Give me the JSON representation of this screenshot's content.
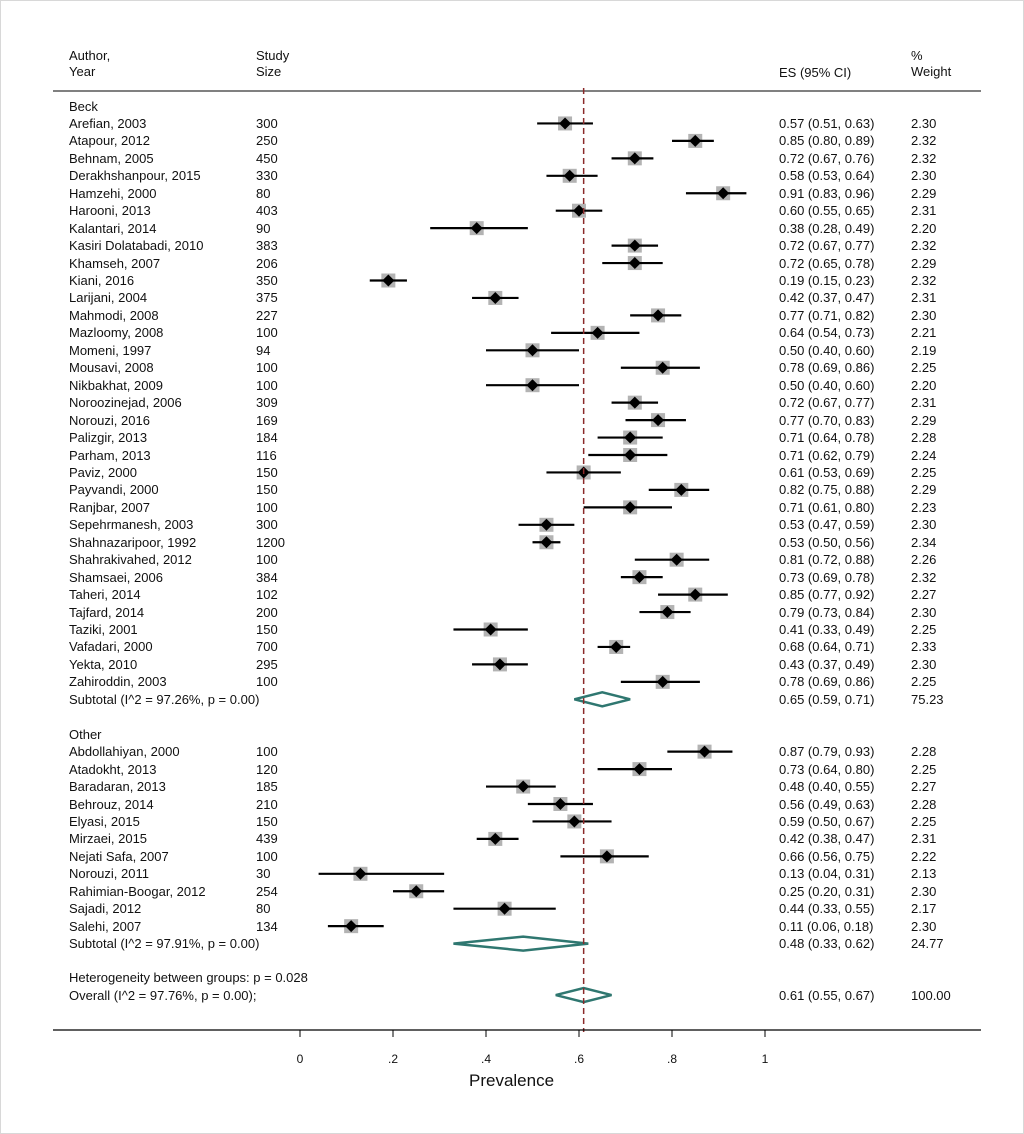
{
  "chart_data": {
    "type": "forest",
    "xlabel": "Prevalence",
    "xlim": [
      0,
      1
    ],
    "xticks": [
      "0",
      ".2",
      ".4",
      ".6",
      ".8",
      "1"
    ],
    "reference_line": 0.61,
    "columns": {
      "author": "Author,\nYear",
      "size": "Study\nSize",
      "es": "ES (95% CI)",
      "weight": "%\nWeight"
    },
    "groups": [
      {
        "name": "Beck",
        "studies": [
          {
            "author": "Arefian, 2003",
            "size": "300",
            "es": 0.57,
            "lo": 0.51,
            "hi": 0.63,
            "ci_text": "0.57 (0.51, 0.63)",
            "weight": "2.30"
          },
          {
            "author": "Atapour, 2012",
            "size": "250",
            "es": 0.85,
            "lo": 0.8,
            "hi": 0.89,
            "ci_text": "0.85 (0.80, 0.89)",
            "weight": "2.32"
          },
          {
            "author": "Behnam, 2005",
            "size": "450",
            "es": 0.72,
            "lo": 0.67,
            "hi": 0.76,
            "ci_text": "0.72 (0.67, 0.76)",
            "weight": "2.32"
          },
          {
            "author": "Derakhshanpour, 2015",
            "size": "330",
            "es": 0.58,
            "lo": 0.53,
            "hi": 0.64,
            "ci_text": "0.58 (0.53, 0.64)",
            "weight": "2.30"
          },
          {
            "author": "Hamzehi, 2000",
            "size": "80",
            "es": 0.91,
            "lo": 0.83,
            "hi": 0.96,
            "ci_text": "0.91 (0.83, 0.96)",
            "weight": "2.29"
          },
          {
            "author": "Harooni, 2013",
            "size": "403",
            "es": 0.6,
            "lo": 0.55,
            "hi": 0.65,
            "ci_text": "0.60 (0.55, 0.65)",
            "weight": "2.31"
          },
          {
            "author": "Kalantari, 2014",
            "size": "90",
            "es": 0.38,
            "lo": 0.28,
            "hi": 0.49,
            "ci_text": "0.38 (0.28, 0.49)",
            "weight": "2.20"
          },
          {
            "author": "Kasiri Dolatabadi, 2010",
            "size": "383",
            "es": 0.72,
            "lo": 0.67,
            "hi": 0.77,
            "ci_text": "0.72 (0.67, 0.77)",
            "weight": "2.32"
          },
          {
            "author": "Khamseh, 2007",
            "size": "206",
            "es": 0.72,
            "lo": 0.65,
            "hi": 0.78,
            "ci_text": "0.72 (0.65, 0.78)",
            "weight": "2.29"
          },
          {
            "author": "Kiani, 2016",
            "size": "350",
            "es": 0.19,
            "lo": 0.15,
            "hi": 0.23,
            "ci_text": "0.19 (0.15, 0.23)",
            "weight": "2.32"
          },
          {
            "author": "Larijani, 2004",
            "size": "375",
            "es": 0.42,
            "lo": 0.37,
            "hi": 0.47,
            "ci_text": "0.42 (0.37, 0.47)",
            "weight": "2.31"
          },
          {
            "author": "Mahmodi, 2008",
            "size": "227",
            "es": 0.77,
            "lo": 0.71,
            "hi": 0.82,
            "ci_text": "0.77 (0.71, 0.82)",
            "weight": "2.30"
          },
          {
            "author": "Mazloomy, 2008",
            "size": "100",
            "es": 0.64,
            "lo": 0.54,
            "hi": 0.73,
            "ci_text": "0.64 (0.54, 0.73)",
            "weight": "2.21"
          },
          {
            "author": "Momeni, 1997",
            "size": "94",
            "es": 0.5,
            "lo": 0.4,
            "hi": 0.6,
            "ci_text": "0.50 (0.40, 0.60)",
            "weight": "2.19"
          },
          {
            "author": "Mousavi, 2008",
            "size": "100",
            "es": 0.78,
            "lo": 0.69,
            "hi": 0.86,
            "ci_text": "0.78 (0.69, 0.86)",
            "weight": "2.25"
          },
          {
            "author": "Nikbakhat, 2009",
            "size": "100",
            "es": 0.5,
            "lo": 0.4,
            "hi": 0.6,
            "ci_text": "0.50 (0.40, 0.60)",
            "weight": "2.20"
          },
          {
            "author": "Noroozinejad, 2006",
            "size": "309",
            "es": 0.72,
            "lo": 0.67,
            "hi": 0.77,
            "ci_text": "0.72 (0.67, 0.77)",
            "weight": "2.31"
          },
          {
            "author": "Norouzi, 2016",
            "size": "169",
            "es": 0.77,
            "lo": 0.7,
            "hi": 0.83,
            "ci_text": "0.77 (0.70, 0.83)",
            "weight": "2.29"
          },
          {
            "author": "Palizgir, 2013",
            "size": "184",
            "es": 0.71,
            "lo": 0.64,
            "hi": 0.78,
            "ci_text": "0.71 (0.64, 0.78)",
            "weight": "2.28"
          },
          {
            "author": "Parham, 2013",
            "size": "116",
            "es": 0.71,
            "lo": 0.62,
            "hi": 0.79,
            "ci_text": "0.71 (0.62, 0.79)",
            "weight": "2.24"
          },
          {
            "author": "Paviz, 2000",
            "size": "150",
            "es": 0.61,
            "lo": 0.53,
            "hi": 0.69,
            "ci_text": "0.61 (0.53, 0.69)",
            "weight": "2.25"
          },
          {
            "author": "Payvandi, 2000",
            "size": "150",
            "es": 0.82,
            "lo": 0.75,
            "hi": 0.88,
            "ci_text": "0.82 (0.75, 0.88)",
            "weight": "2.29"
          },
          {
            "author": "Ranjbar, 2007",
            "size": "100",
            "es": 0.71,
            "lo": 0.61,
            "hi": 0.8,
            "ci_text": "0.71 (0.61, 0.80)",
            "weight": "2.23"
          },
          {
            "author": "Sepehrmanesh, 2003",
            "size": "300",
            "es": 0.53,
            "lo": 0.47,
            "hi": 0.59,
            "ci_text": "0.53 (0.47, 0.59)",
            "weight": "2.30"
          },
          {
            "author": "Shahnazaripoor, 1992",
            "size": "1200",
            "es": 0.53,
            "lo": 0.5,
            "hi": 0.56,
            "ci_text": "0.53 (0.50, 0.56)",
            "weight": "2.34"
          },
          {
            "author": "Shahrakivahed, 2012",
            "size": "100",
            "es": 0.81,
            "lo": 0.72,
            "hi": 0.88,
            "ci_text": "0.81 (0.72, 0.88)",
            "weight": "2.26"
          },
          {
            "author": "Shamsaei, 2006",
            "size": "384",
            "es": 0.73,
            "lo": 0.69,
            "hi": 0.78,
            "ci_text": "0.73 (0.69, 0.78)",
            "weight": "2.32"
          },
          {
            "author": "Taheri, 2014",
            "size": "102",
            "es": 0.85,
            "lo": 0.77,
            "hi": 0.92,
            "ci_text": "0.85 (0.77, 0.92)",
            "weight": "2.27"
          },
          {
            "author": "Tajfard, 2014",
            "size": "200",
            "es": 0.79,
            "lo": 0.73,
            "hi": 0.84,
            "ci_text": "0.79 (0.73, 0.84)",
            "weight": "2.30"
          },
          {
            "author": "Taziki, 2001",
            "size": "150",
            "es": 0.41,
            "lo": 0.33,
            "hi": 0.49,
            "ci_text": "0.41 (0.33, 0.49)",
            "weight": "2.25"
          },
          {
            "author": "Vafadari, 2000",
            "size": "700",
            "es": 0.68,
            "lo": 0.64,
            "hi": 0.71,
            "ci_text": "0.68 (0.64, 0.71)",
            "weight": "2.33"
          },
          {
            "author": "Yekta, 2010",
            "size": "295",
            "es": 0.43,
            "lo": 0.37,
            "hi": 0.49,
            "ci_text": "0.43 (0.37, 0.49)",
            "weight": "2.30"
          },
          {
            "author": "Zahiroddin, 2003",
            "size": "100",
            "es": 0.78,
            "lo": 0.69,
            "hi": 0.86,
            "ci_text": "0.78 (0.69, 0.86)",
            "weight": "2.25"
          }
        ],
        "subtotal": {
          "label": "Subtotal  (I^2 = 97.26%, p = 0.00)",
          "es": 0.65,
          "lo": 0.59,
          "hi": 0.71,
          "ci_text": "0.65 (0.59, 0.71)",
          "weight": "75.23"
        }
      },
      {
        "name": "Other",
        "studies": [
          {
            "author": "Abdollahiyan, 2000",
            "size": "100",
            "es": 0.87,
            "lo": 0.79,
            "hi": 0.93,
            "ci_text": "0.87 (0.79, 0.93)",
            "weight": "2.28"
          },
          {
            "author": "Atadokht, 2013",
            "size": "120",
            "es": 0.73,
            "lo": 0.64,
            "hi": 0.8,
            "ci_text": "0.73 (0.64, 0.80)",
            "weight": "2.25"
          },
          {
            "author": "Baradaran, 2013",
            "size": "185",
            "es": 0.48,
            "lo": 0.4,
            "hi": 0.55,
            "ci_text": "0.48 (0.40, 0.55)",
            "weight": "2.27"
          },
          {
            "author": "Behrouz, 2014",
            "size": "210",
            "es": 0.56,
            "lo": 0.49,
            "hi": 0.63,
            "ci_text": "0.56 (0.49, 0.63)",
            "weight": "2.28"
          },
          {
            "author": "Elyasi, 2015",
            "size": "150",
            "es": 0.59,
            "lo": 0.5,
            "hi": 0.67,
            "ci_text": "0.59 (0.50, 0.67)",
            "weight": "2.25"
          },
          {
            "author": "Mirzaei, 2015",
            "size": "439",
            "es": 0.42,
            "lo": 0.38,
            "hi": 0.47,
            "ci_text": "0.42 (0.38, 0.47)",
            "weight": "2.31"
          },
          {
            "author": "Nejati Safa, 2007",
            "size": "100",
            "es": 0.66,
            "lo": 0.56,
            "hi": 0.75,
            "ci_text": "0.66 (0.56, 0.75)",
            "weight": "2.22"
          },
          {
            "author": "Norouzi, 2011",
            "size": "30",
            "es": 0.13,
            "lo": 0.04,
            "hi": 0.31,
            "ci_text": "0.13 (0.04, 0.31)",
            "weight": "2.13"
          },
          {
            "author": "Rahimian-Boogar, 2012",
            "size": "254",
            "es": 0.25,
            "lo": 0.2,
            "hi": 0.31,
            "ci_text": "0.25 (0.20, 0.31)",
            "weight": "2.30"
          },
          {
            "author": "Sajadi, 2012",
            "size": "80",
            "es": 0.44,
            "lo": 0.33,
            "hi": 0.55,
            "ci_text": "0.44 (0.33, 0.55)",
            "weight": "2.17"
          },
          {
            "author": "Salehi, 2007",
            "size": "134",
            "es": 0.11,
            "lo": 0.06,
            "hi": 0.18,
            "ci_text": "0.11 (0.06, 0.18)",
            "weight": "2.30"
          }
        ],
        "subtotal": {
          "label": "Subtotal  (I^2 = 97.91%, p = 0.00)",
          "es": 0.48,
          "lo": 0.33,
          "hi": 0.62,
          "ci_text": "0.48 (0.33, 0.62)",
          "weight": "24.77"
        }
      }
    ],
    "heterogeneity_label": "Heterogeneity between groups: p = 0.028",
    "overall": {
      "label": "Overall  (I^2 = 97.76%, p = 0.00);",
      "es": 0.61,
      "lo": 0.55,
      "hi": 0.67,
      "ci_text": "0.61 (0.55, 0.67)",
      "weight": "100.00"
    },
    "colors": {
      "diamond": "#2f7770",
      "square": "#b3b3b3",
      "ref_line": "#8b2a2a",
      "marker": "#000000"
    }
  }
}
